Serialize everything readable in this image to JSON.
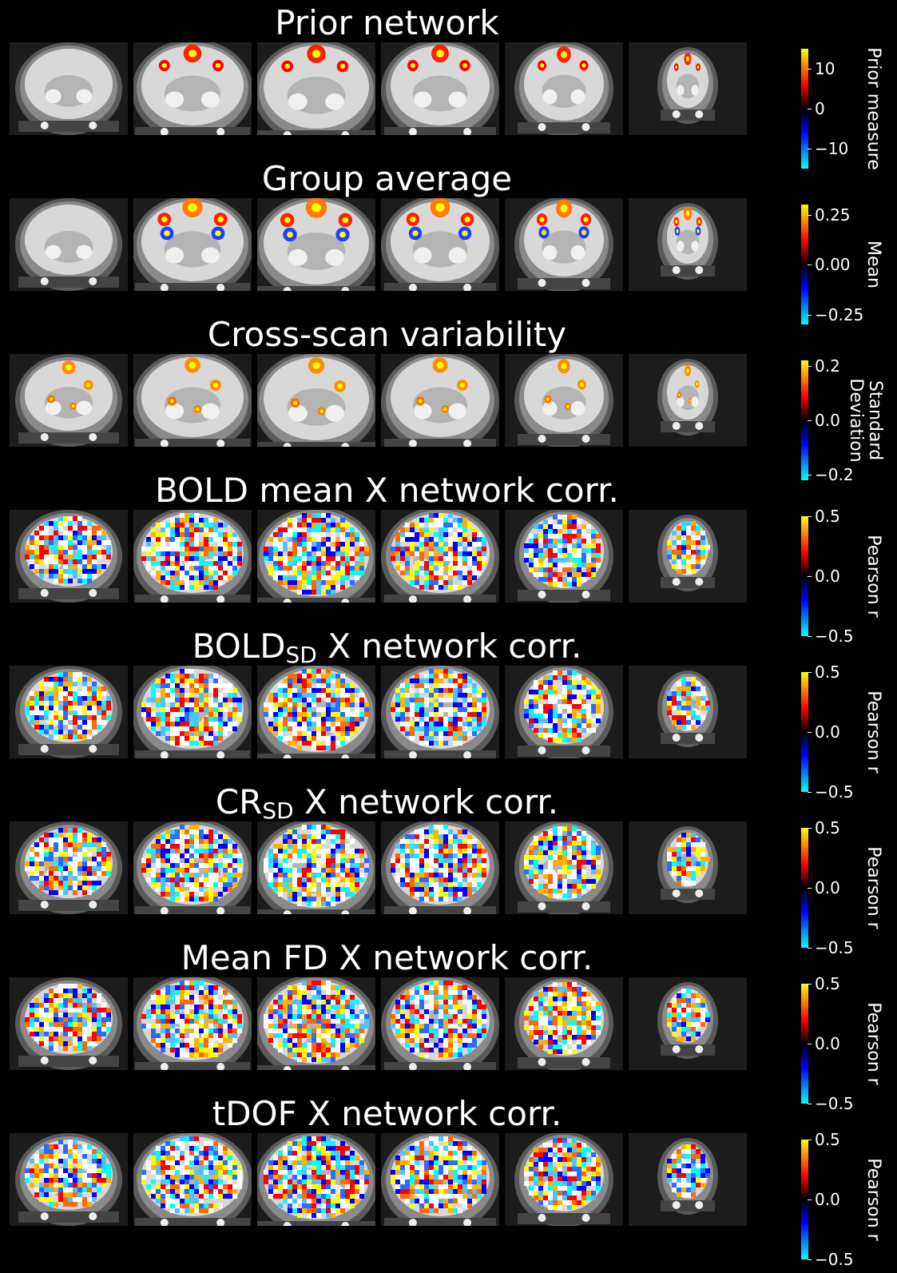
{
  "figure": {
    "rows": [
      {
        "title": "Prior network",
        "title_sub": "",
        "title_tail": "",
        "style": "prior",
        "colorbar_label": "Prior measure",
        "ticks": [
          {
            "label": "10",
            "value": 10
          },
          {
            "label": "0",
            "value": 0
          },
          {
            "label": "−10",
            "value": -10
          }
        ],
        "range": [
          -15,
          15
        ]
      },
      {
        "title": "Group average",
        "title_sub": "",
        "title_tail": "",
        "style": "mean",
        "colorbar_label": "Mean",
        "ticks": [
          {
            "label": "0.25",
            "value": 0.25
          },
          {
            "label": "0.00",
            "value": 0
          },
          {
            "label": "−0.25",
            "value": -0.25
          }
        ],
        "range": [
          -0.3,
          0.3
        ]
      },
      {
        "title": "Cross-scan variability",
        "title_sub": "",
        "title_tail": "",
        "style": "sd",
        "colorbar_label": "Standard\nDeviation",
        "ticks": [
          {
            "label": "0.2",
            "value": 0.2
          },
          {
            "label": "0.0",
            "value": 0
          },
          {
            "label": "−0.2",
            "value": -0.2
          }
        ],
        "range": [
          -0.22,
          0.22
        ]
      },
      {
        "title": "BOLD mean X network corr.",
        "title_sub": "",
        "title_tail": "",
        "style": "corr",
        "colorbar_label": "Pearson r",
        "ticks": [
          {
            "label": "0.5",
            "value": 0.5
          },
          {
            "label": "0.0",
            "value": 0
          },
          {
            "label": "−0.5",
            "value": -0.5
          }
        ],
        "range": [
          -0.5,
          0.5
        ]
      },
      {
        "title": "BOLD",
        "title_sub": "SD",
        "title_tail": " X network corr.",
        "style": "corr",
        "colorbar_label": "Pearson r",
        "ticks": [
          {
            "label": "0.5",
            "value": 0.5
          },
          {
            "label": "0.0",
            "value": 0
          },
          {
            "label": "−0.5",
            "value": -0.5
          }
        ],
        "range": [
          -0.5,
          0.5
        ]
      },
      {
        "title": "CR",
        "title_sub": "SD",
        "title_tail": " X network corr.",
        "style": "corr",
        "colorbar_label": "Pearson r",
        "ticks": [
          {
            "label": "0.5",
            "value": 0.5
          },
          {
            "label": "0.0",
            "value": 0
          },
          {
            "label": "−0.5",
            "value": -0.5
          }
        ],
        "range": [
          -0.5,
          0.5
        ]
      },
      {
        "title": "Mean FD X network corr.",
        "title_sub": "",
        "title_tail": "",
        "style": "corr",
        "colorbar_label": "Pearson r",
        "ticks": [
          {
            "label": "0.5",
            "value": 0.5
          },
          {
            "label": "0.0",
            "value": 0
          },
          {
            "label": "−0.5",
            "value": -0.5
          }
        ],
        "range": [
          -0.5,
          0.5
        ]
      },
      {
        "title": "tDOF X network corr.",
        "title_sub": "",
        "title_tail": "",
        "style": "corr",
        "colorbar_label": "Pearson r",
        "ticks": [
          {
            "label": "0.5",
            "value": 0.5
          },
          {
            "label": "0.0",
            "value": 0
          },
          {
            "label": "−0.5",
            "value": -0.5
          }
        ],
        "range": [
          -0.5,
          0.5
        ]
      }
    ],
    "colormap": {
      "negative_end": "#00ffff",
      "negative_mid": "#0000ff",
      "positive_mid": "#ff0000",
      "positive_end": "#ffff00"
    },
    "slice_icon": "coronal-brain-slice"
  }
}
